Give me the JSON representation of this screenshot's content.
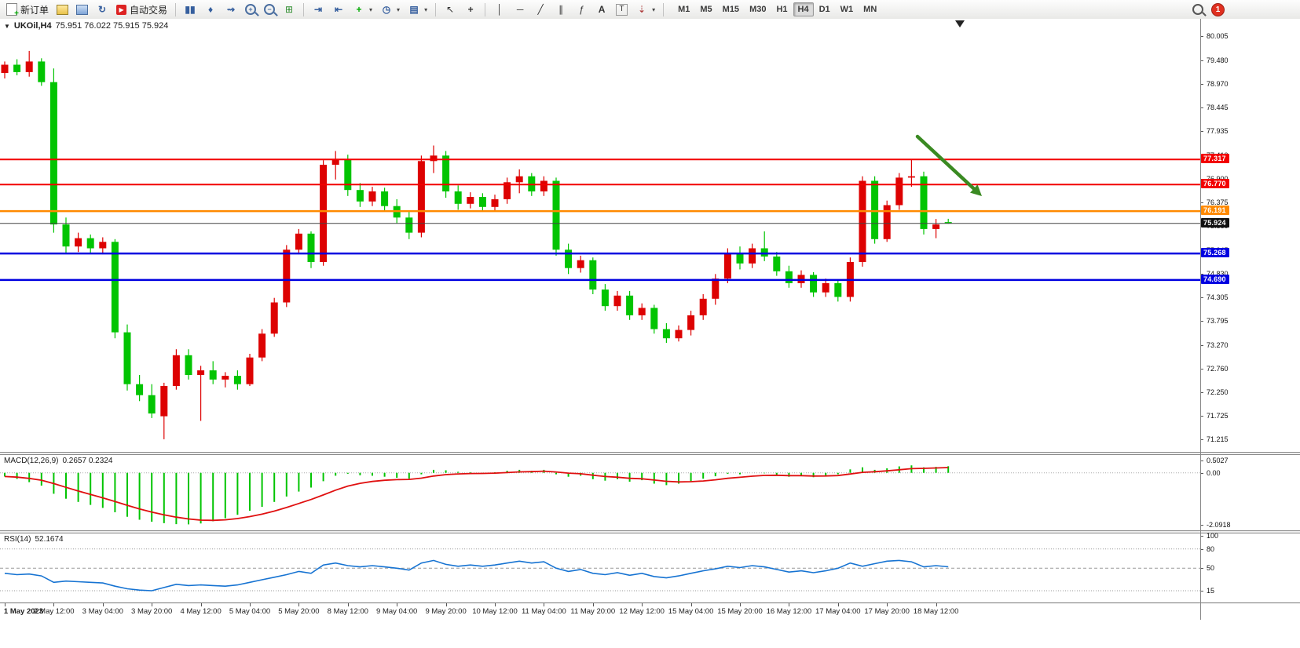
{
  "toolbar": {
    "new_order": "新订单",
    "auto_trading": "自动交易",
    "timeframes": [
      "M1",
      "M5",
      "M15",
      "M30",
      "H1",
      "H4",
      "D1",
      "W1",
      "MN"
    ],
    "active_timeframe": "H4",
    "notification_badge": "1"
  },
  "chart": {
    "symbol_period": "UKOil,H4",
    "ohlc": "75.951 76.022 75.915 75.924"
  },
  "chart_data": [
    {
      "type": "candlestick",
      "title": "UKOil,H4",
      "colors": {
        "up": "#dd0202",
        "down": "#02c402",
        "arrow": "#3a8a22"
      },
      "axis_ticks": [
        "80.005",
        "79.480",
        "78.970",
        "78.445",
        "77.935",
        "77.410",
        "76.900",
        "76.375",
        "75.860",
        "75.345",
        "74.830",
        "74.305",
        "73.795",
        "73.270",
        "72.760",
        "72.250",
        "71.725",
        "71.215"
      ],
      "ylim": [
        71.215,
        80.005
      ],
      "current_price": 75.924,
      "current_price_label": "75.924",
      "hlines": [
        {
          "price": 77.317,
          "label": "77.317",
          "color": "#f20000",
          "width": 2
        },
        {
          "price": 76.77,
          "label": "76.770",
          "color": "#f20000",
          "width": 2
        },
        {
          "price": 76.191,
          "label": "76.191",
          "color": "#ff8a00",
          "width": 2.5
        },
        {
          "price": 75.268,
          "label": "75.268",
          "color": "#0000e0",
          "width": 2.5
        },
        {
          "price": 74.69,
          "label": "74.690",
          "color": "#0000e0",
          "width": 2.5
        }
      ],
      "time_labels": [
        "1 May 2023",
        "2 May 12:00",
        "3 May 04:00",
        "3 May 20:00",
        "4 May 12:00",
        "5 May 04:00",
        "5 May 20:00",
        "8 May 12:00",
        "9 May 04:00",
        "9 May 20:00",
        "10 May 12:00",
        "11 May 04:00",
        "11 May 20:00",
        "12 May 12:00",
        "15 May 04:00",
        "15 May 20:00",
        "16 May 12:00",
        "17 May 04:00",
        "17 May 20:00",
        "18 May 12:00"
      ],
      "candles": [
        [
          79.2,
          79.45,
          79.08,
          79.38
        ],
        [
          79.38,
          79.5,
          79.15,
          79.22
        ],
        [
          79.22,
          79.68,
          79.12,
          79.45
        ],
        [
          79.45,
          79.52,
          78.92,
          79.0
        ],
        [
          79.0,
          79.3,
          75.72,
          75.9
        ],
        [
          75.9,
          76.05,
          75.28,
          75.42
        ],
        [
          75.42,
          75.72,
          75.3,
          75.6
        ],
        [
          75.6,
          75.68,
          75.28,
          75.38
        ],
        [
          75.38,
          75.62,
          75.25,
          75.52
        ],
        [
          75.52,
          75.58,
          73.42,
          73.55
        ],
        [
          73.55,
          73.72,
          72.28,
          72.42
        ],
        [
          72.42,
          72.62,
          72.05,
          72.18
        ],
        [
          72.18,
          72.42,
          71.68,
          71.78
        ],
        [
          71.72,
          72.45,
          71.22,
          72.38
        ],
        [
          72.38,
          73.18,
          72.3,
          73.05
        ],
        [
          73.05,
          73.18,
          72.52,
          72.62
        ],
        [
          72.62,
          72.82,
          71.62,
          72.72
        ],
        [
          72.72,
          72.92,
          72.42,
          72.52
        ],
        [
          72.52,
          72.68,
          72.35,
          72.6
        ],
        [
          72.6,
          72.72,
          72.3,
          72.42
        ],
        [
          72.42,
          73.08,
          72.38,
          73.0
        ],
        [
          73.0,
          73.62,
          72.92,
          73.52
        ],
        [
          73.52,
          74.3,
          73.45,
          74.2
        ],
        [
          74.2,
          75.45,
          74.1,
          75.35
        ],
        [
          75.35,
          75.8,
          75.25,
          75.7
        ],
        [
          75.7,
          75.75,
          74.95,
          75.08
        ],
        [
          75.08,
          77.3,
          75.0,
          77.2
        ],
        [
          77.2,
          77.5,
          76.88,
          77.32
        ],
        [
          77.32,
          77.42,
          76.52,
          76.65
        ],
        [
          76.65,
          76.8,
          76.28,
          76.4
        ],
        [
          76.4,
          76.72,
          76.3,
          76.62
        ],
        [
          76.62,
          76.7,
          76.18,
          76.3
        ],
        [
          76.3,
          76.45,
          75.92,
          76.05
        ],
        [
          76.05,
          76.18,
          75.58,
          75.72
        ],
        [
          75.72,
          77.4,
          75.62,
          77.28
        ],
        [
          77.28,
          77.62,
          77.02,
          77.4
        ],
        [
          77.4,
          77.5,
          76.48,
          76.62
        ],
        [
          76.62,
          76.75,
          76.22,
          76.35
        ],
        [
          76.35,
          76.6,
          76.25,
          76.5
        ],
        [
          76.5,
          76.58,
          76.18,
          76.28
        ],
        [
          76.28,
          76.55,
          76.2,
          76.45
        ],
        [
          76.45,
          76.92,
          76.35,
          76.82
        ],
        [
          76.82,
          77.1,
          76.58,
          76.95
        ],
        [
          76.95,
          77.02,
          76.52,
          76.62
        ],
        [
          76.62,
          76.95,
          76.52,
          76.85
        ],
        [
          76.85,
          76.92,
          75.22,
          75.35
        ],
        [
          75.35,
          75.48,
          74.82,
          74.95
        ],
        [
          74.95,
          75.22,
          74.85,
          75.12
        ],
        [
          75.12,
          75.18,
          74.38,
          74.48
        ],
        [
          74.48,
          74.6,
          74.02,
          74.12
        ],
        [
          74.12,
          74.45,
          74.02,
          74.35
        ],
        [
          74.35,
          74.45,
          73.82,
          73.92
        ],
        [
          73.92,
          74.18,
          73.82,
          74.08
        ],
        [
          74.08,
          74.15,
          73.52,
          73.62
        ],
        [
          73.62,
          73.75,
          73.32,
          73.42
        ],
        [
          73.42,
          73.7,
          73.35,
          73.6
        ],
        [
          73.6,
          74.02,
          73.48,
          73.92
        ],
        [
          73.92,
          74.38,
          73.82,
          74.28
        ],
        [
          74.28,
          74.82,
          74.15,
          74.72
        ],
        [
          74.72,
          75.38,
          74.62,
          75.28
        ],
        [
          75.28,
          75.42,
          74.92,
          75.05
        ],
        [
          75.05,
          75.48,
          74.95,
          75.38
        ],
        [
          75.38,
          75.75,
          75.1,
          75.2
        ],
        [
          75.2,
          75.3,
          74.78,
          74.88
        ],
        [
          74.88,
          75.0,
          74.52,
          74.62
        ],
        [
          74.62,
          74.9,
          74.52,
          74.8
        ],
        [
          74.8,
          74.86,
          74.32,
          74.42
        ],
        [
          74.42,
          74.72,
          74.32,
          74.62
        ],
        [
          74.62,
          74.7,
          74.22,
          74.32
        ],
        [
          74.32,
          75.18,
          74.22,
          75.08
        ],
        [
          75.08,
          76.95,
          74.98,
          76.85
        ],
        [
          76.85,
          76.95,
          75.48,
          75.58
        ],
        [
          75.58,
          76.42,
          75.52,
          76.32
        ],
        [
          76.32,
          77.02,
          76.22,
          76.92
        ],
        [
          76.92,
          77.32,
          76.72,
          76.95
        ],
        [
          76.95,
          77.05,
          75.68,
          75.8
        ],
        [
          75.8,
          76.02,
          75.6,
          75.9
        ],
        [
          75.951,
          76.022,
          75.915,
          75.924
        ]
      ]
    },
    {
      "type": "macd_histogram",
      "label": "MACD(12,26,9)",
      "value_display": "0.2657 0.2324",
      "histogram_color": "#02c402",
      "signal_color": "#e01010",
      "axis": [
        {
          "v": 0.5027,
          "t": "0.5027"
        },
        {
          "v": 0,
          "t": "0.00"
        },
        {
          "v": -2.0918,
          "t": "-2.0918"
        }
      ],
      "values": [
        -0.15,
        -0.25,
        -0.38,
        -0.52,
        -0.85,
        -1.05,
        -1.18,
        -1.3,
        -1.42,
        -1.6,
        -1.78,
        -1.9,
        -1.98,
        -2.04,
        -2.08,
        -2.09,
        -2.05,
        -1.96,
        -1.84,
        -1.7,
        -1.54,
        -1.38,
        -1.18,
        -0.96,
        -0.76,
        -0.6,
        -0.34,
        -0.12,
        -0.04,
        -0.1,
        -0.12,
        -0.16,
        -0.2,
        -0.24,
        -0.06,
        0.12,
        0.1,
        0.04,
        0.02,
        -0.02,
        0.02,
        0.08,
        0.12,
        0.08,
        0.12,
        -0.06,
        -0.16,
        -0.12,
        -0.26,
        -0.32,
        -0.26,
        -0.36,
        -0.3,
        -0.44,
        -0.5,
        -0.44,
        -0.34,
        -0.24,
        -0.14,
        -0.04,
        -0.06,
        0.0,
        -0.02,
        -0.08,
        -0.16,
        -0.12,
        -0.18,
        -0.12,
        -0.06,
        0.14,
        0.22,
        0.12,
        0.18,
        0.26,
        0.3,
        0.22,
        0.24,
        0.2657
      ]
    },
    {
      "type": "line",
      "label": "RSI(14)",
      "value_display": "52.1674",
      "line_color": "#1673d2",
      "levels": [
        80,
        50,
        15
      ],
      "axis": [
        {
          "v": 100,
          "t": "100"
        },
        {
          "v": 80,
          "t": "80"
        },
        {
          "v": 50,
          "t": "50"
        },
        {
          "v": 15,
          "t": "15"
        }
      ],
      "values": [
        42,
        40,
        41,
        38,
        28,
        30,
        29,
        28,
        27,
        22,
        18,
        16,
        15,
        20,
        25,
        23,
        24,
        23,
        22,
        24,
        28,
        32,
        36,
        40,
        45,
        42,
        55,
        58,
        54,
        52,
        54,
        52,
        50,
        47,
        58,
        62,
        56,
        53,
        55,
        53,
        55,
        58,
        61,
        58,
        60,
        50,
        45,
        48,
        42,
        40,
        43,
        39,
        42,
        37,
        35,
        38,
        42,
        46,
        49,
        53,
        51,
        54,
        52,
        48,
        44,
        46,
        43,
        46,
        50,
        58,
        53,
        57,
        61,
        62,
        60,
        52,
        54,
        52.17
      ]
    }
  ]
}
